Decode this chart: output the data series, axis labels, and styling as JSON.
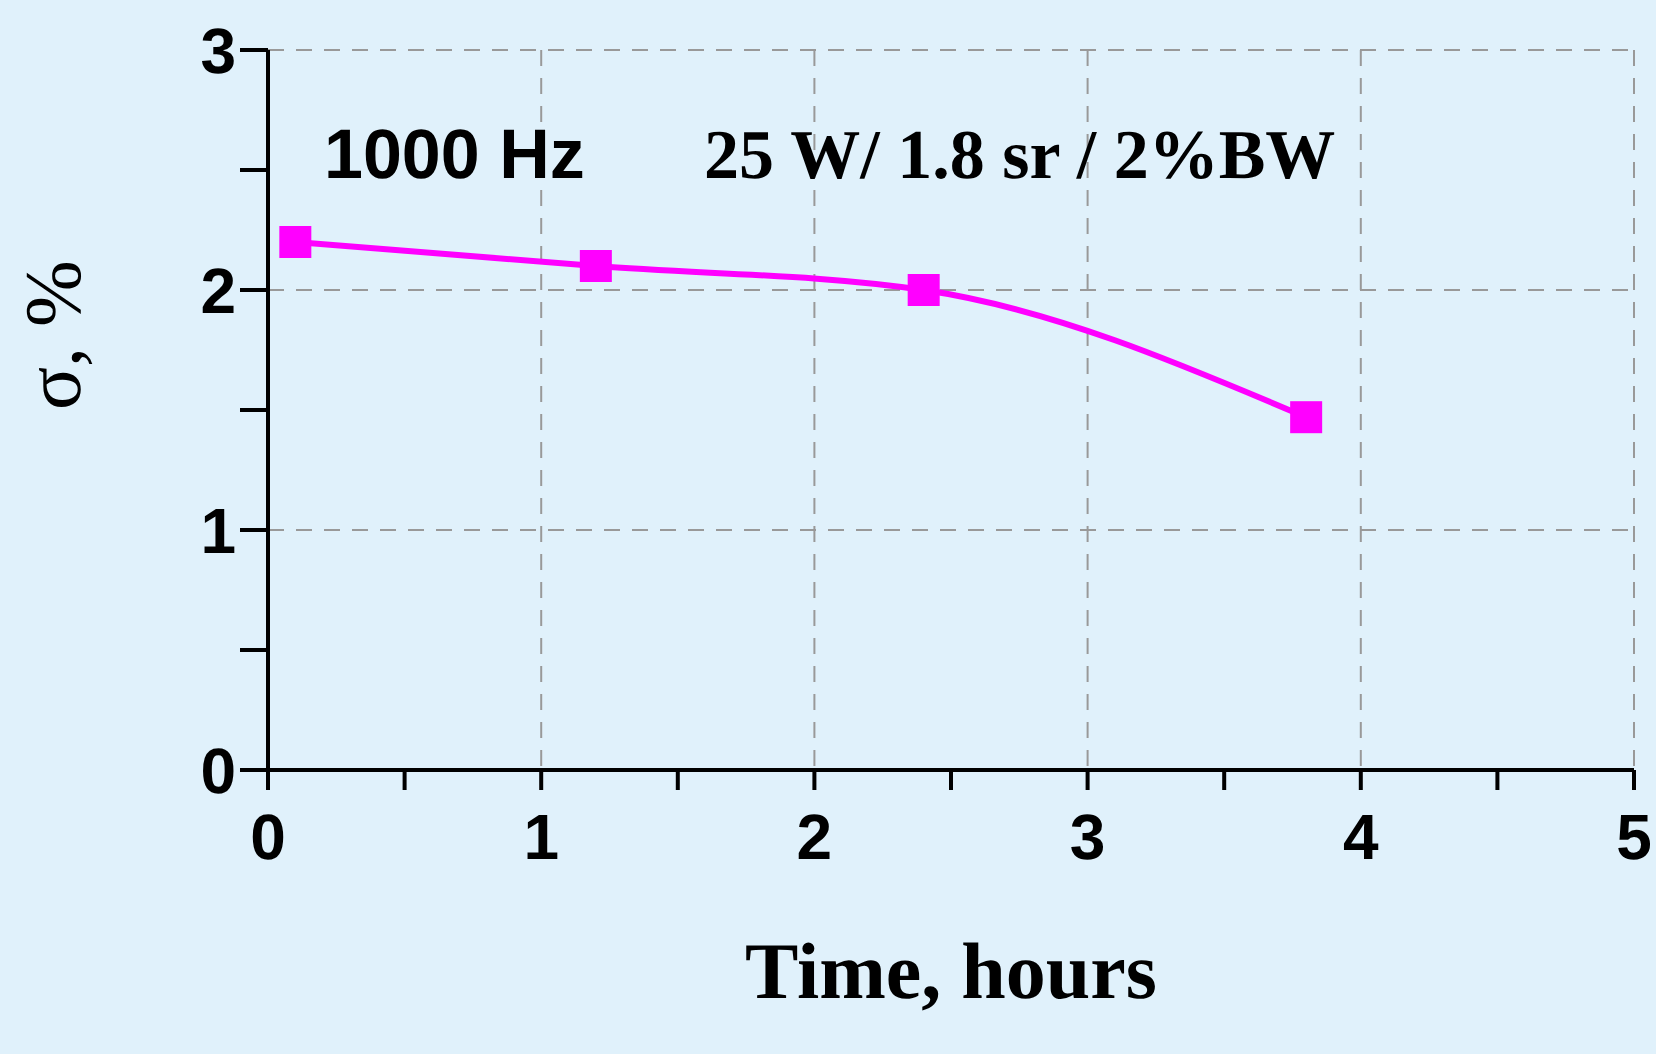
{
  "chart_data": {
    "type": "line",
    "xlabel": "Time, hours",
    "ylabel": "σ, %",
    "annotations": [
      "1000 Hz",
      "25 W/ 1.8 sr / 2%BW"
    ],
    "x": [
      0.1,
      1.2,
      2.4,
      3.8
    ],
    "series": [
      {
        "color": "#ff00ff",
        "values": [
          2.2,
          2.1,
          2.0,
          1.47
        ]
      }
    ],
    "xlim": [
      0,
      5
    ],
    "xticks": [
      0,
      {
        "value": 0.5,
        "label": null
      },
      1,
      {
        "value": 1.5,
        "label": null
      },
      2,
      {
        "value": 2.5,
        "label": null
      },
      3,
      {
        "value": 3.5,
        "label": null
      },
      4,
      {
        "value": 4.5,
        "label": null
      },
      5
    ],
    "ylim": [
      0,
      3
    ],
    "yticks": [
      0,
      {
        "value": 0.5,
        "label": null
      },
      1,
      {
        "value": 1.5,
        "label": null
      },
      2,
      {
        "value": 2.5,
        "label": null
      },
      3
    ],
    "grid": true,
    "marker": "square",
    "line_style": "solid",
    "legend": false
  }
}
